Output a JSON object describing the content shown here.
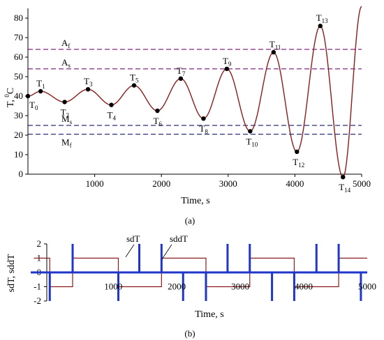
{
  "figure": {
    "panel_a_caption": "(a)",
    "panel_b_caption": "(b)"
  },
  "chart_data": [
    {
      "type": "line",
      "panel": "(a)",
      "xlabel": "Time, s",
      "ylabel": "T, 0C",
      "ylabel_parts": {
        "main": "T, ",
        "sup": "0",
        "unit": "C"
      },
      "xlim": [
        0,
        5000
      ],
      "ylim": [
        0,
        85
      ],
      "xticks": [
        1000,
        2000,
        3000,
        4000,
        5000
      ],
      "yticks": [
        0,
        10,
        20,
        30,
        40,
        50,
        60,
        70,
        80
      ],
      "line_color": "#8b1c1c",
      "reference_lines": [
        {
          "label": "Af",
          "label_main": "A",
          "label_sub": "f",
          "value": 64,
          "color": "#8e3a8e"
        },
        {
          "label": "As",
          "label_main": "A",
          "label_sub": "s",
          "value": 54,
          "color": "#8e3a8e"
        },
        {
          "label": "Ms",
          "label_main": "M",
          "label_sub": "s",
          "value": 25,
          "color": "#2e2e7a"
        },
        {
          "label": "Mf",
          "label_main": "M",
          "label_sub": "f",
          "value": 20.5,
          "color": "#2e2e7a"
        }
      ],
      "points": [
        {
          "name": "T0",
          "x": 0,
          "y": 40
        },
        {
          "name": "T1",
          "x": 190,
          "y": 42.5
        },
        {
          "name": "T2",
          "x": 550,
          "y": 37
        },
        {
          "name": "T3",
          "x": 900,
          "y": 43.5
        },
        {
          "name": "T4",
          "x": 1250,
          "y": 35.5
        },
        {
          "name": "T5",
          "x": 1590,
          "y": 45.5
        },
        {
          "name": "T6",
          "x": 1940,
          "y": 32.5
        },
        {
          "name": "T7",
          "x": 2290,
          "y": 49
        },
        {
          "name": "T8",
          "x": 2630,
          "y": 28.5
        },
        {
          "name": "T9",
          "x": 2980,
          "y": 54
        },
        {
          "name": "T10",
          "x": 3330,
          "y": 22
        },
        {
          "name": "T11",
          "x": 3680,
          "y": 62.5
        },
        {
          "name": "T12",
          "x": 4030,
          "y": 11.5
        },
        {
          "name": "T13",
          "x": 4380,
          "y": 76
        },
        {
          "name": "T14",
          "x": 4720,
          "y": -1.5
        }
      ],
      "end_point": {
        "x": 5000,
        "y": 86
      }
    },
    {
      "type": "line",
      "panel": "(b)",
      "xlabel": "Time, s",
      "ylabel": "sdT, sddT",
      "xlim": [
        -300,
        5000
      ],
      "ylim": [
        -2,
        2
      ],
      "xticks": [
        1000,
        2000,
        3000,
        4000,
        5000
      ],
      "yticks": [
        -2,
        -1,
        0,
        1,
        2
      ],
      "series": [
        {
          "name": "sdT",
          "color": "#8b1c1c",
          "segments": [
            {
              "x0": -250,
              "x1": 0,
              "y": 1
            },
            {
              "x0": 0,
              "x1": 360,
              "y": -1
            },
            {
              "x0": 360,
              "x1": 1080,
              "y": 1
            },
            {
              "x0": 1080,
              "x1": 1760,
              "y": -1
            },
            {
              "x0": 1760,
              "x1": 2460,
              "y": 1
            },
            {
              "x0": 2460,
              "x1": 3150,
              "y": -1
            },
            {
              "x0": 3150,
              "x1": 3850,
              "y": 1
            },
            {
              "x0": 3850,
              "x1": 4550,
              "y": -1
            },
            {
              "x0": 4550,
              "x1": 5000,
              "y": 1
            }
          ]
        },
        {
          "name": "sddT",
          "color": "#1f36c9",
          "spikes": [
            {
              "x": 0,
              "y": -2
            },
            {
              "x": 360,
              "y": 2
            },
            {
              "x": 1080,
              "y": -2
            },
            {
              "x": 1410,
              "y": 2
            },
            {
              "x": 1760,
              "y": 2
            },
            {
              "x": 2100,
              "y": -2
            },
            {
              "x": 2460,
              "y": -2
            },
            {
              "x": 2800,
              "y": 2
            },
            {
              "x": 3150,
              "y": 2
            },
            {
              "x": 3500,
              "y": -2
            },
            {
              "x": 3850,
              "y": -2
            },
            {
              "x": 4200,
              "y": 2
            },
            {
              "x": 4550,
              "y": 2
            },
            {
              "x": 4900,
              "y": -2
            }
          ]
        }
      ]
    }
  ]
}
